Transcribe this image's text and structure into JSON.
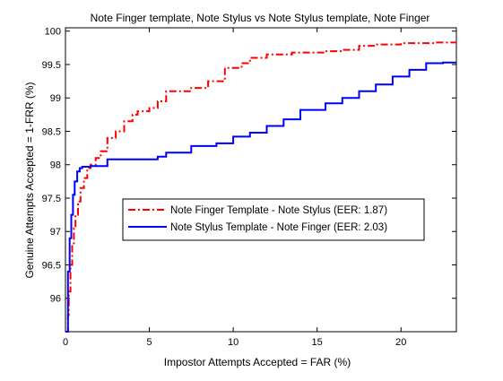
{
  "chart_data": {
    "type": "line",
    "title": "Note Finger template, Note Stylus  vs Note Stylus template, Note Finger",
    "xlabel": "Impostor Attempts Accepted = FAR (%)",
    "ylabel": "Genuine Attempts Accepted = 1-FRR (%)",
    "xlim": [
      0,
      23.3
    ],
    "ylim": [
      95.5,
      100.05
    ],
    "xticks": [
      "0",
      "5",
      "10",
      "15",
      "20"
    ],
    "xtick_values": [
      0,
      5,
      10,
      15,
      20
    ],
    "yticks": [
      "96",
      "96.5",
      "97",
      "97.5",
      "98",
      "98.5",
      "99",
      "99.5",
      "100"
    ],
    "ytick_values": [
      96,
      96.5,
      97,
      97.5,
      98,
      98.5,
      99,
      99.5,
      100
    ],
    "grid": false,
    "legend_placement": "center-right",
    "series": [
      {
        "name": "Note Finger Template - Note Stylus (EER: 1.87)",
        "color": "#ff0000",
        "style": "dash-dot",
        "x": [
          0.0,
          0.15,
          0.2,
          0.3,
          0.4,
          0.5,
          0.6,
          0.75,
          0.9,
          1.1,
          1.3,
          1.5,
          1.8,
          2.1,
          2.5,
          3.0,
          3.5,
          4.0,
          4.3,
          5.0,
          5.5,
          6.0,
          7.5,
          8.5,
          9.5,
          10.5,
          11.0,
          12.0,
          13.5,
          15.5,
          16.5,
          17.5,
          18.5,
          20.0,
          22.0,
          23.3
        ],
        "y": [
          95.5,
          95.75,
          96.1,
          96.5,
          96.8,
          97.05,
          97.25,
          97.45,
          97.65,
          97.8,
          97.95,
          98.0,
          98.1,
          98.2,
          98.4,
          98.5,
          98.65,
          98.75,
          98.8,
          98.85,
          98.95,
          99.1,
          99.15,
          99.25,
          99.45,
          99.52,
          99.6,
          99.65,
          99.68,
          99.7,
          99.72,
          99.78,
          99.8,
          99.82,
          99.83,
          99.83
        ]
      },
      {
        "name": "Note Stylus Template - Note Finger (EER: 2.03)",
        "color": "#0000ff",
        "style": "solid",
        "x": [
          0.0,
          0.15,
          0.25,
          0.35,
          0.45,
          0.55,
          0.7,
          0.85,
          1.0,
          1.5,
          2.5,
          4.0,
          5.5,
          6.0,
          7.5,
          9.0,
          10.0,
          11.0,
          12.0,
          13.0,
          14.0,
          15.5,
          16.5,
          17.5,
          18.5,
          19.5,
          20.5,
          21.5,
          22.5,
          23.3
        ],
        "y": [
          95.5,
          96.4,
          96.9,
          97.25,
          97.55,
          97.75,
          97.9,
          97.95,
          97.97,
          97.98,
          98.08,
          98.08,
          98.12,
          98.18,
          98.28,
          98.32,
          98.42,
          98.48,
          98.58,
          98.68,
          98.82,
          98.92,
          99.0,
          99.1,
          99.2,
          99.32,
          99.42,
          99.52,
          99.53,
          99.53
        ]
      }
    ]
  }
}
